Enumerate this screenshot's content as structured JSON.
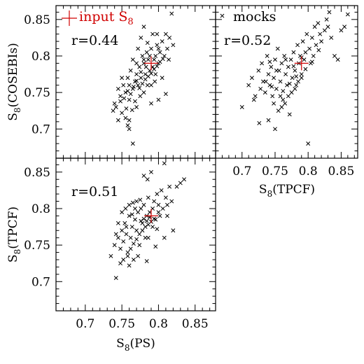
{
  "colors": {
    "points": "#000000",
    "input": "#d00000",
    "background": "#ffffff"
  },
  "chart_data": [
    {
      "id": "ps-vs-cosebis",
      "type": "scatter",
      "xlabel": "",
      "ylabel_main": "S",
      "ylabel_sub": "8",
      "ylabel_paren": "(COSEBIs)",
      "xlim": [
        0.66,
        0.88
      ],
      "ylim": [
        0.66,
        0.87
      ],
      "xticks": [],
      "yticks": [
        "0.7",
        "0.75",
        "0.8",
        "0.85"
      ],
      "correlation": "r=0.44",
      "legend_text": "input S",
      "legend_sub": "8",
      "input": [
        0.79,
        0.79
      ],
      "points": [
        [
          0.745,
          0.755
        ],
        [
          0.742,
          0.73
        ],
        [
          0.748,
          0.745
        ],
        [
          0.752,
          0.76
        ],
        [
          0.755,
          0.75
        ],
        [
          0.758,
          0.77
        ],
        [
          0.76,
          0.74
        ],
        [
          0.762,
          0.78
        ],
        [
          0.765,
          0.755
        ],
        [
          0.768,
          0.765
        ],
        [
          0.77,
          0.775
        ],
        [
          0.772,
          0.76
        ],
        [
          0.774,
          0.785
        ],
        [
          0.776,
          0.77
        ],
        [
          0.778,
          0.8
        ],
        [
          0.78,
          0.79
        ],
        [
          0.782,
          0.775
        ],
        [
          0.784,
          0.805
        ],
        [
          0.786,
          0.795
        ],
        [
          0.788,
          0.78
        ],
        [
          0.79,
          0.81
        ],
        [
          0.792,
          0.785
        ],
        [
          0.794,
          0.795
        ],
        [
          0.796,
          0.8
        ],
        [
          0.798,
          0.815
        ],
        [
          0.8,
          0.79
        ],
        [
          0.802,
          0.805
        ],
        [
          0.805,
          0.82
        ],
        [
          0.808,
          0.8
        ],
        [
          0.81,
          0.83
        ],
        [
          0.812,
          0.81
        ],
        [
          0.815,
          0.825
        ],
        [
          0.818,
          0.858
        ],
        [
          0.82,
          0.815
        ],
        [
          0.75,
          0.722
        ],
        [
          0.755,
          0.715
        ],
        [
          0.758,
          0.705
        ],
        [
          0.76,
          0.7
        ],
        [
          0.745,
          0.712
        ],
        [
          0.77,
          0.73
        ],
        [
          0.775,
          0.745
        ],
        [
          0.78,
          0.75
        ],
        [
          0.785,
          0.76
        ],
        [
          0.79,
          0.735
        ],
        [
          0.795,
          0.765
        ],
        [
          0.8,
          0.74
        ],
        [
          0.805,
          0.77
        ],
        [
          0.81,
          0.748
        ],
        [
          0.738,
          0.725
        ],
        [
          0.74,
          0.735
        ],
        [
          0.75,
          0.77
        ],
        [
          0.765,
          0.795
        ],
        [
          0.772,
          0.81
        ],
        [
          0.776,
          0.825
        ],
        [
          0.78,
          0.84
        ],
        [
          0.785,
          0.818
        ],
        [
          0.792,
          0.83
        ],
        [
          0.798,
          0.83
        ],
        [
          0.765,
          0.68
        ],
        [
          0.76,
          0.712
        ],
        [
          0.768,
          0.738
        ],
        [
          0.774,
          0.756
        ],
        [
          0.778,
          0.762
        ],
        [
          0.782,
          0.768
        ],
        [
          0.786,
          0.772
        ],
        [
          0.79,
          0.776
        ],
        [
          0.794,
          0.782
        ],
        [
          0.798,
          0.786
        ],
        [
          0.802,
          0.792
        ],
        [
          0.806,
          0.796
        ],
        [
          0.756,
          0.728
        ],
        [
          0.762,
          0.748
        ],
        [
          0.766,
          0.758
        ],
        [
          0.748,
          0.738
        ],
        [
          0.77,
          0.79
        ],
        [
          0.776,
          0.778
        ],
        [
          0.783,
          0.785
        ],
        [
          0.788,
          0.8
        ],
        [
          0.76,
          0.76
        ],
        [
          0.753,
          0.742
        ],
        [
          0.79,
          0.76
        ],
        [
          0.796,
          0.775
        ],
        [
          0.814,
          0.795
        ],
        [
          0.77,
          0.766
        ],
        [
          0.764,
          0.726
        ],
        [
          0.78,
          0.795
        ],
        [
          0.8,
          0.81
        ],
        [
          0.758,
          0.752
        ]
      ]
    },
    {
      "id": "tpcf-vs-cosebis",
      "type": "scatter",
      "xlabel_main": "S",
      "xlabel_sub": "8",
      "xlabel_paren": "(TPCF)",
      "xlim": [
        0.66,
        0.88
      ],
      "ylim": [
        0.66,
        0.87
      ],
      "xticks": [
        "0.7",
        "0.75",
        "0.8",
        "0.85"
      ],
      "yticks": [],
      "correlation": "r=0.52",
      "legend_text": "mocks",
      "input": [
        0.79,
        0.79
      ],
      "points": [
        [
          0.67,
          0.855
        ],
        [
          0.7,
          0.73
        ],
        [
          0.71,
          0.76
        ],
        [
          0.715,
          0.77
        ],
        [
          0.72,
          0.745
        ],
        [
          0.725,
          0.78
        ],
        [
          0.728,
          0.755
        ],
        [
          0.73,
          0.79
        ],
        [
          0.732,
          0.765
        ],
        [
          0.735,
          0.75
        ],
        [
          0.738,
          0.8
        ],
        [
          0.74,
          0.775
        ],
        [
          0.742,
          0.76
        ],
        [
          0.744,
          0.785
        ],
        [
          0.746,
          0.745
        ],
        [
          0.748,
          0.77
        ],
        [
          0.75,
          0.795
        ],
        [
          0.752,
          0.755
        ],
        [
          0.754,
          0.81
        ],
        [
          0.756,
          0.78
        ],
        [
          0.758,
          0.765
        ],
        [
          0.76,
          0.79
        ],
        [
          0.762,
          0.74
        ],
        [
          0.764,
          0.8
        ],
        [
          0.766,
          0.775
        ],
        [
          0.768,
          0.76
        ],
        [
          0.77,
          0.785
        ],
        [
          0.772,
          0.72
        ],
        [
          0.774,
          0.795
        ],
        [
          0.776,
          0.77
        ],
        [
          0.778,
          0.805
        ],
        [
          0.78,
          0.78
        ],
        [
          0.782,
          0.76
        ],
        [
          0.784,
          0.815
        ],
        [
          0.786,
          0.79
        ],
        [
          0.788,
          0.8
        ],
        [
          0.79,
          0.775
        ],
        [
          0.792,
          0.82
        ],
        [
          0.794,
          0.795
        ],
        [
          0.796,
          0.805
        ],
        [
          0.798,
          0.83
        ],
        [
          0.8,
          0.68
        ],
        [
          0.802,
          0.81
        ],
        [
          0.804,
          0.79
        ],
        [
          0.806,
          0.825
        ],
        [
          0.808,
          0.8
        ],
        [
          0.81,
          0.84
        ],
        [
          0.812,
          0.815
        ],
        [
          0.815,
          0.845
        ],
        [
          0.818,
          0.83
        ],
        [
          0.82,
          0.82
        ],
        [
          0.825,
          0.835
        ],
        [
          0.83,
          0.84
        ],
        [
          0.835,
          0.825
        ],
        [
          0.84,
          0.8
        ],
        [
          0.845,
          0.795
        ],
        [
          0.85,
          0.835
        ],
        [
          0.855,
          0.84
        ],
        [
          0.86,
          0.857
        ],
        [
          0.832,
          0.86
        ],
        [
          0.726,
          0.708
        ],
        [
          0.74,
          0.712
        ],
        [
          0.75,
          0.7
        ],
        [
          0.755,
          0.725
        ],
        [
          0.76,
          0.73
        ],
        [
          0.765,
          0.735
        ],
        [
          0.77,
          0.745
        ],
        [
          0.775,
          0.75
        ],
        [
          0.78,
          0.755
        ],
        [
          0.785,
          0.765
        ],
        [
          0.79,
          0.77
        ],
        [
          0.745,
          0.758
        ],
        [
          0.736,
          0.765
        ],
        [
          0.718,
          0.74
        ],
        [
          0.762,
          0.752
        ],
        [
          0.772,
          0.762
        ],
        [
          0.782,
          0.772
        ],
        [
          0.796,
          0.782
        ],
        [
          0.758,
          0.745
        ],
        [
          0.748,
          0.735
        ],
        [
          0.806,
          0.792
        ],
        [
          0.816,
          0.808
        ],
        [
          0.828,
          0.85
        ],
        [
          0.766,
          0.795
        ],
        [
          0.752,
          0.78
        ],
        [
          0.742,
          0.792
        ],
        [
          0.778,
          0.786
        ],
        [
          0.79,
          0.798
        ]
      ]
    },
    {
      "id": "ps-vs-tpcf",
      "type": "scatter",
      "xlabel_main": "S",
      "xlabel_sub": "8",
      "xlabel_paren": "(PS)",
      "ylabel_main": "S",
      "ylabel_sub": "8",
      "ylabel_paren": "(TPCF)",
      "xlim": [
        0.66,
        0.88
      ],
      "ylim": [
        0.66,
        0.87
      ],
      "xticks": [
        "0.7",
        "0.75",
        "0.8",
        "0.85"
      ],
      "yticks": [
        "0.7",
        "0.75",
        "0.8",
        "0.85"
      ],
      "correlation": "r=0.51",
      "input": [
        0.79,
        0.79
      ],
      "points": [
        [
          0.735,
          0.735
        ],
        [
          0.74,
          0.75
        ],
        [
          0.742,
          0.705
        ],
        [
          0.745,
          0.76
        ],
        [
          0.748,
          0.745
        ],
        [
          0.75,
          0.77
        ],
        [
          0.752,
          0.755
        ],
        [
          0.754,
          0.78
        ],
        [
          0.756,
          0.765
        ],
        [
          0.758,
          0.74
        ],
        [
          0.76,
          0.79
        ],
        [
          0.762,
          0.76
        ],
        [
          0.764,
          0.775
        ],
        [
          0.766,
          0.73
        ],
        [
          0.768,
          0.785
        ],
        [
          0.77,
          0.77
        ],
        [
          0.772,
          0.795
        ],
        [
          0.774,
          0.75
        ],
        [
          0.776,
          0.8
        ],
        [
          0.778,
          0.78
        ],
        [
          0.78,
          0.805
        ],
        [
          0.782,
          0.76
        ],
        [
          0.784,
          0.79
        ],
        [
          0.786,
          0.815
        ],
        [
          0.788,
          0.795
        ],
        [
          0.79,
          0.85
        ],
        [
          0.792,
          0.8
        ],
        [
          0.794,
          0.81
        ],
        [
          0.796,
          0.785
        ],
        [
          0.798,
          0.82
        ],
        [
          0.8,
          0.805
        ],
        [
          0.802,
          0.79
        ],
        [
          0.804,
          0.825
        ],
        [
          0.806,
          0.8
        ],
        [
          0.808,
          0.862
        ],
        [
          0.81,
          0.815
        ],
        [
          0.812,
          0.79
        ],
        [
          0.815,
          0.83
        ],
        [
          0.818,
          0.81
        ],
        [
          0.82,
          0.77
        ],
        [
          0.825,
          0.83
        ],
        [
          0.83,
          0.835
        ],
        [
          0.835,
          0.84
        ],
        [
          0.745,
          0.78
        ],
        [
          0.75,
          0.795
        ],
        [
          0.755,
          0.8
        ],
        [
          0.76,
          0.805
        ],
        [
          0.765,
          0.808
        ],
        [
          0.77,
          0.81
        ],
        [
          0.775,
          0.812
        ],
        [
          0.78,
          0.845
        ],
        [
          0.785,
          0.84
        ],
        [
          0.758,
          0.735
        ],
        [
          0.762,
          0.745
        ],
        [
          0.766,
          0.752
        ],
        [
          0.77,
          0.758
        ],
        [
          0.774,
          0.765
        ],
        [
          0.778,
          0.77
        ],
        [
          0.782,
          0.775
        ],
        [
          0.786,
          0.778
        ],
        [
          0.79,
          0.782
        ],
        [
          0.794,
          0.786
        ],
        [
          0.752,
          0.73
        ],
        [
          0.748,
          0.725
        ],
        [
          0.76,
          0.722
        ],
        [
          0.772,
          0.735
        ],
        [
          0.784,
          0.728
        ],
        [
          0.796,
          0.748
        ],
        [
          0.808,
          0.76
        ],
        [
          0.776,
          0.783
        ],
        [
          0.78,
          0.786
        ],
        [
          0.784,
          0.783
        ],
        [
          0.788,
          0.788
        ],
        [
          0.792,
          0.775
        ],
        [
          0.8,
          0.795
        ],
        [
          0.812,
          0.805
        ],
        [
          0.756,
          0.775
        ],
        [
          0.764,
          0.792
        ],
        [
          0.742,
          0.765
        ],
        [
          0.768,
          0.8
        ],
        [
          0.786,
          0.76
        ],
        [
          0.798,
          0.772
        ]
      ]
    }
  ]
}
